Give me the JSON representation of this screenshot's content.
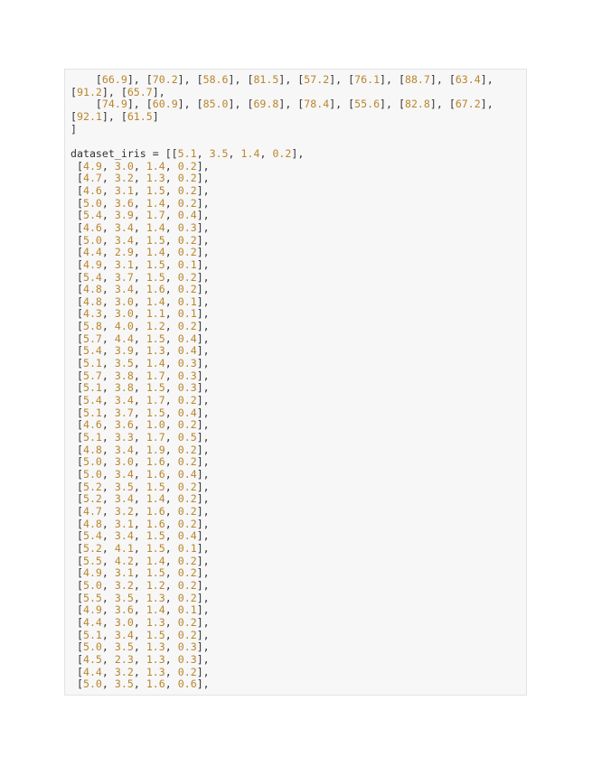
{
  "code": {
    "lines": [
      "    [66.9], [70.2], [58.6], [81.5], [57.2], [76.1], [88.7], [63.4],",
      "[91.2], [65.7],",
      "    [74.9], [60.9], [85.0], [69.8], [78.4], [55.6], [82.8], [67.2],",
      "[92.1], [61.5]",
      "]",
      "",
      "dataset_iris = [[5.1, 3.5, 1.4, 0.2],",
      " [4.9, 3.0, 1.4, 0.2],",
      " [4.7, 3.2, 1.3, 0.2],",
      " [4.6, 3.1, 1.5, 0.2],",
      " [5.0, 3.6, 1.4, 0.2],",
      " [5.4, 3.9, 1.7, 0.4],",
      " [4.6, 3.4, 1.4, 0.3],",
      " [5.0, 3.4, 1.5, 0.2],",
      " [4.4, 2.9, 1.4, 0.2],",
      " [4.9, 3.1, 1.5, 0.1],",
      " [5.4, 3.7, 1.5, 0.2],",
      " [4.8, 3.4, 1.6, 0.2],",
      " [4.8, 3.0, 1.4, 0.1],",
      " [4.3, 3.0, 1.1, 0.1],",
      " [5.8, 4.0, 1.2, 0.2],",
      " [5.7, 4.4, 1.5, 0.4],",
      " [5.4, 3.9, 1.3, 0.4],",
      " [5.1, 3.5, 1.4, 0.3],",
      " [5.7, 3.8, 1.7, 0.3],",
      " [5.1, 3.8, 1.5, 0.3],",
      " [5.4, 3.4, 1.7, 0.2],",
      " [5.1, 3.7, 1.5, 0.4],",
      " [4.6, 3.6, 1.0, 0.2],",
      " [5.1, 3.3, 1.7, 0.5],",
      " [4.8, 3.4, 1.9, 0.2],",
      " [5.0, 3.0, 1.6, 0.2],",
      " [5.0, 3.4, 1.6, 0.4],",
      " [5.2, 3.5, 1.5, 0.2],",
      " [5.2, 3.4, 1.4, 0.2],",
      " [4.7, 3.2, 1.6, 0.2],",
      " [4.8, 3.1, 1.6, 0.2],",
      " [5.4, 3.4, 1.5, 0.4],",
      " [5.2, 4.1, 1.5, 0.1],",
      " [5.5, 4.2, 1.4, 0.2],",
      " [4.9, 3.1, 1.5, 0.2],",
      " [5.0, 3.2, 1.2, 0.2],",
      " [5.5, 3.5, 1.3, 0.2],",
      " [4.9, 3.6, 1.4, 0.1],",
      " [4.4, 3.0, 1.3, 0.2],",
      " [5.1, 3.4, 1.5, 0.2],",
      " [5.0, 3.5, 1.3, 0.3],",
      " [4.5, 2.3, 1.3, 0.3],",
      " [4.4, 3.2, 1.3, 0.2],",
      " [5.0, 3.5, 1.6, 0.6],"
    ]
  },
  "colors": {
    "number": "#b8862d",
    "text": "#333333",
    "background": "#f7f7f7"
  }
}
